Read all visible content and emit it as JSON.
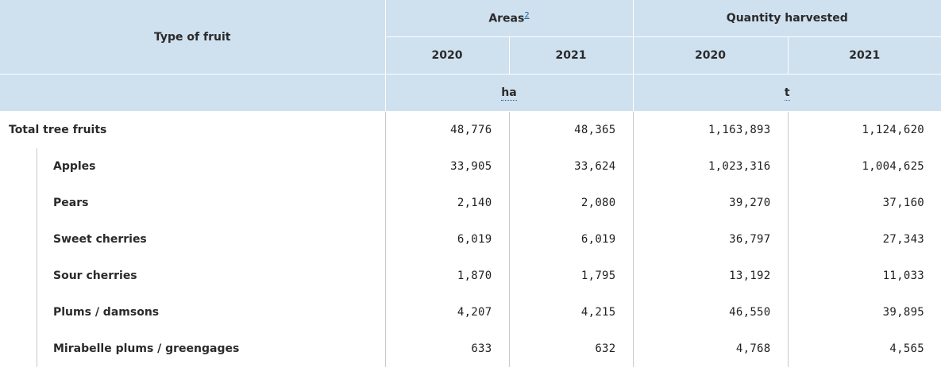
{
  "header": {
    "type_of_fruit": "Type of fruit",
    "areas": "Areas",
    "areas_footnote": "2",
    "quantity": "Quantity harvested",
    "year_a": "2020",
    "year_b": "2021",
    "unit_areas": "ha",
    "unit_quantity": "t"
  },
  "rows": [
    {
      "label": "Total tree fruits",
      "area_2020": "48,776",
      "area_2021": "48,365",
      "qty_2020": "1,163,893",
      "qty_2021": "1,124,620"
    },
    {
      "label": "Apples",
      "area_2020": "33,905",
      "area_2021": "33,624",
      "qty_2020": "1,023,316",
      "qty_2021": "1,004,625"
    },
    {
      "label": "Pears",
      "area_2020": "2,140",
      "area_2021": "2,080",
      "qty_2020": "39,270",
      "qty_2021": "37,160"
    },
    {
      "label": "Sweet cherries",
      "area_2020": "6,019",
      "area_2021": "6,019",
      "qty_2020": "36,797",
      "qty_2021": "27,343"
    },
    {
      "label": "Sour cherries",
      "area_2020": "1,870",
      "area_2021": "1,795",
      "qty_2020": "13,192",
      "qty_2021": "11,033"
    },
    {
      "label": "Plums / damsons",
      "area_2020": "4,207",
      "area_2021": "4,215",
      "qty_2020": "46,550",
      "qty_2021": "39,895"
    },
    {
      "label": "Mirabelle plums / greengages",
      "area_2020": "633",
      "area_2021": "632",
      "qty_2020": "4,768",
      "qty_2021": "4,565"
    }
  ]
}
